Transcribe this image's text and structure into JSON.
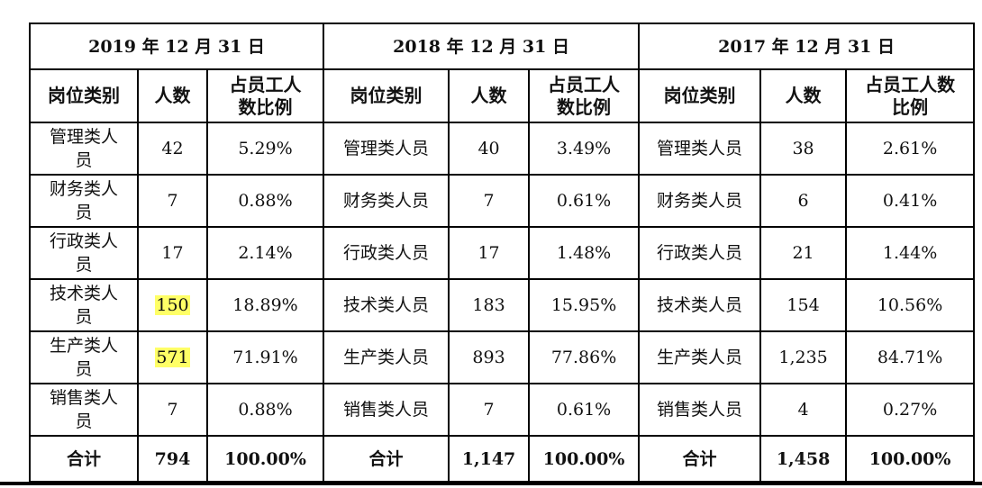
{
  "years": [
    "2019 年 12 月 31 日",
    "2018 年 12 月 31 日",
    "2017 年 12 月 31 日"
  ],
  "headers": {
    "category": "岗位类别",
    "count": "人数",
    "ratio": "占员工人数比例"
  },
  "highlight_color": "#ffff66",
  "rows": [
    {
      "category": "管理类人员",
      "y2019": {
        "count": "42",
        "ratio": "5.29%"
      },
      "y2018": {
        "count": "40",
        "ratio": "3.49%"
      },
      "y2017": {
        "count": "38",
        "ratio": "2.61%"
      }
    },
    {
      "category": "财务类人员",
      "y2019": {
        "count": "7",
        "ratio": "0.88%"
      },
      "y2018": {
        "count": "7",
        "ratio": "0.61%"
      },
      "y2017": {
        "count": "6",
        "ratio": "0.41%"
      }
    },
    {
      "category": "行政类人员",
      "y2019": {
        "count": "17",
        "ratio": "2.14%"
      },
      "y2018": {
        "count": "17",
        "ratio": "1.48%"
      },
      "y2017": {
        "count": "21",
        "ratio": "1.44%"
      }
    },
    {
      "category": "技术类人员",
      "y2019": {
        "count": "150",
        "ratio": "18.89%",
        "highlighted": true
      },
      "y2018": {
        "count": "183",
        "ratio": "15.95%"
      },
      "y2017": {
        "count": "154",
        "ratio": "10.56%"
      }
    },
    {
      "category": "生产类人员",
      "y2019": {
        "count": "571",
        "ratio": "71.91%",
        "highlighted": true
      },
      "y2018": {
        "count": "893",
        "ratio": "77.86%"
      },
      "y2017": {
        "count": "1,235",
        "ratio": "84.71%"
      }
    },
    {
      "category": "销售类人员",
      "y2019": {
        "count": "7",
        "ratio": "0.88%"
      },
      "y2018": {
        "count": "7",
        "ratio": "0.61%"
      },
      "y2017": {
        "count": "4",
        "ratio": "0.27%"
      }
    }
  ],
  "total": {
    "label": "合计",
    "y2019": {
      "count": "794",
      "ratio": "100.00%"
    },
    "y2018": {
      "count": "1,147",
      "ratio": "100.00%"
    },
    "y2017": {
      "count": "1,458",
      "ratio": "100.00%"
    }
  }
}
